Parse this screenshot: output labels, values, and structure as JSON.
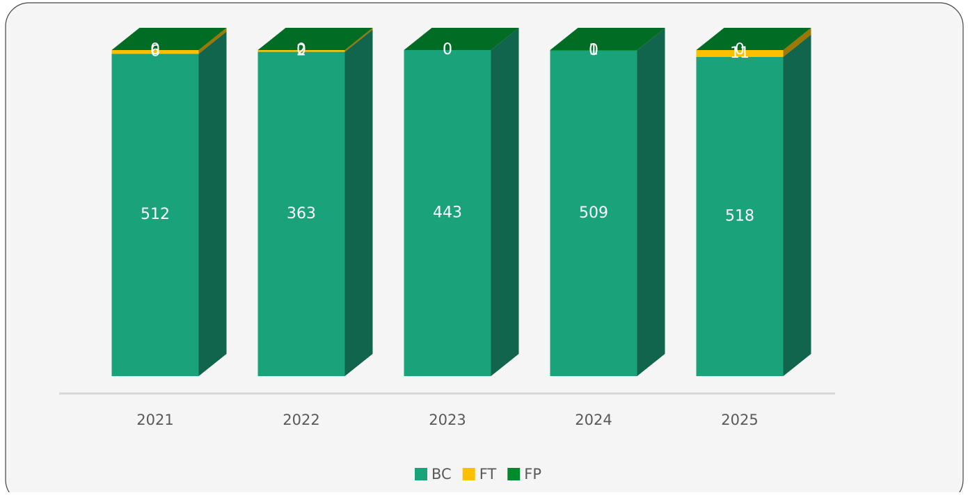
{
  "chart_data": {
    "type": "stacked_bar_100",
    "categories": [
      "2021",
      "2022",
      "2023",
      "2024",
      "2025"
    ],
    "series": [
      {
        "name": "BC",
        "color": "#1aa37a",
        "values": [
          512,
          363,
          443,
          509,
          518
        ]
      },
      {
        "name": "FT",
        "color": "#fdc000",
        "values": [
          6,
          2,
          0,
          0,
          11
        ]
      },
      {
        "name": "FP",
        "color": "#008a2e",
        "values": [
          0,
          0,
          0,
          1,
          0
        ]
      }
    ],
    "legend": "bottom"
  }
}
